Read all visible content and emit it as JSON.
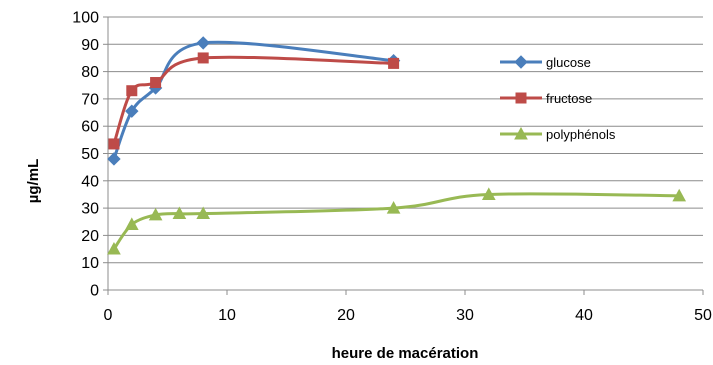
{
  "chart_data": {
    "type": "line",
    "title": "",
    "xlabel": "heure de macération",
    "ylabel": "µg/mL",
    "xlim": [
      0,
      50
    ],
    "ylim": [
      0,
      100
    ],
    "xticks": [
      0,
      10,
      20,
      30,
      40,
      50
    ],
    "yticks": [
      0,
      10,
      20,
      30,
      40,
      50,
      60,
      70,
      80,
      90,
      100
    ],
    "grid": "horizontal",
    "legend_position": "right",
    "series": [
      {
        "name": "glucose",
        "color": "#4A7EBB",
        "marker": "diamond",
        "x": [
          0.5,
          2,
          4,
          8,
          24
        ],
        "y": [
          48,
          65.5,
          74,
          90.5,
          84
        ]
      },
      {
        "name": "fructose",
        "color": "#BE4B48",
        "marker": "square",
        "x": [
          0.5,
          2,
          4,
          8,
          24
        ],
        "y": [
          53.5,
          73,
          76,
          85,
          83
        ]
      },
      {
        "name": "polyphénols",
        "color": "#98B954",
        "marker": "triangle",
        "x": [
          0.5,
          2,
          4,
          6,
          8,
          24,
          32,
          48
        ],
        "y": [
          15,
          24,
          27.5,
          28,
          28,
          30,
          35,
          34.5
        ]
      }
    ]
  }
}
